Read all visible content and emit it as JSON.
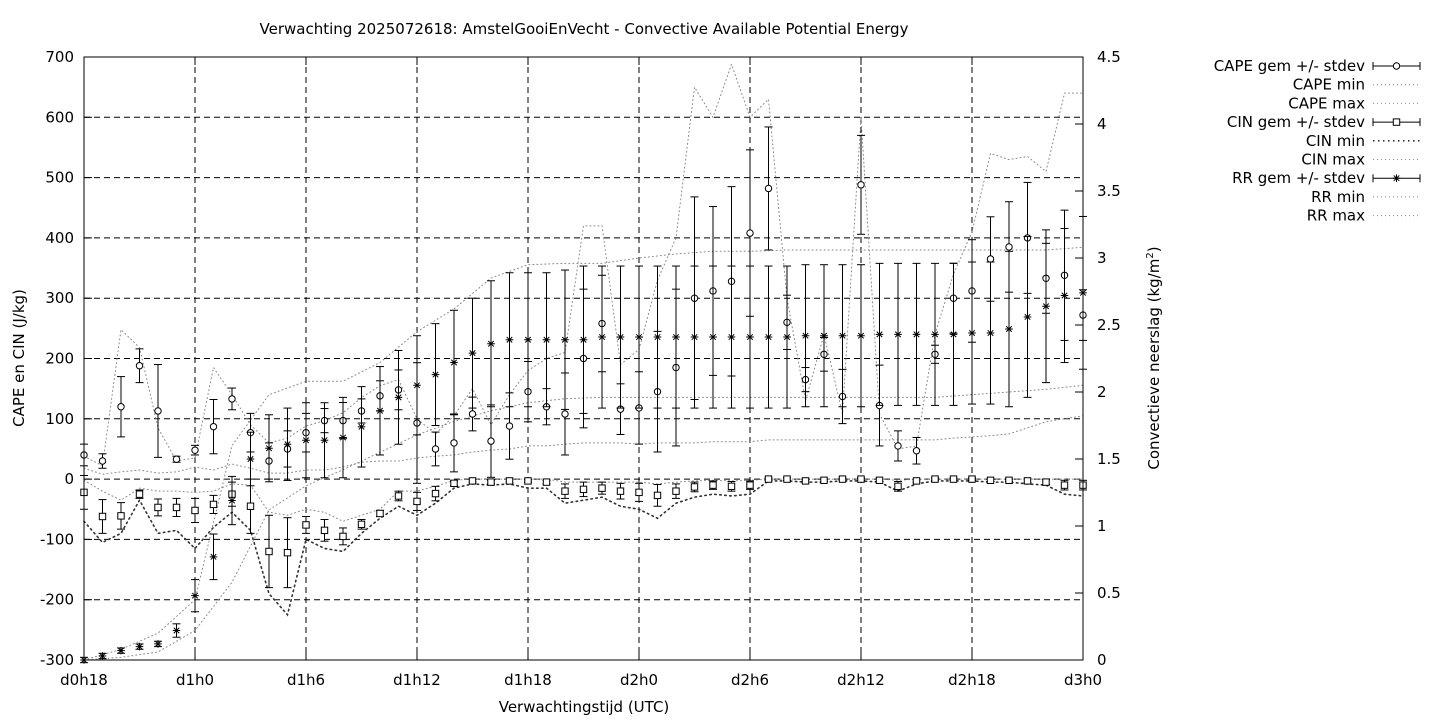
{
  "chart_data": {
    "type": "line",
    "title": "Verwachting 2025072618: AmstelGooiEnVecht - Convective Available Potential Energy",
    "xlabel": "Verwachtingstijd (UTC)",
    "ylabel": "CAPE en CIN (J/kg)",
    "y2label": "Convectieve neerslag (kg/m²)",
    "y2label_base": "Convectieve neerslag (kg/m",
    "y2label_sup": "2",
    "y2label_end": ")",
    "xlim": [
      18,
      72
    ],
    "ylim": [
      -300,
      700
    ],
    "y2lim": [
      0,
      4.5
    ],
    "grid": true,
    "legend_position": "outside-right",
    "x_ticks": [
      {
        "value": 18,
        "label": "d0h18"
      },
      {
        "value": 24,
        "label": "d1h0"
      },
      {
        "value": 30,
        "label": "d1h6"
      },
      {
        "value": 36,
        "label": "d1h12"
      },
      {
        "value": 42,
        "label": "d1h18"
      },
      {
        "value": 48,
        "label": "d2h0"
      },
      {
        "value": 54,
        "label": "d2h6"
      },
      {
        "value": 60,
        "label": "d2h12"
      },
      {
        "value": 66,
        "label": "d2h18"
      },
      {
        "value": 72,
        "label": "d3h0"
      }
    ],
    "y_ticks": [
      {
        "value": 700,
        "label": "700"
      },
      {
        "value": 600,
        "label": "600"
      },
      {
        "value": 500,
        "label": "500"
      },
      {
        "value": 400,
        "label": "400"
      },
      {
        "value": 300,
        "label": "300"
      },
      {
        "value": 200,
        "label": "200"
      },
      {
        "value": 100,
        "label": "100"
      },
      {
        "value": 0,
        "label": "0"
      },
      {
        "value": -100,
        "label": "-100"
      },
      {
        "value": -200,
        "label": "-200"
      },
      {
        "value": -300,
        "label": "-300"
      }
    ],
    "y2_ticks": [
      {
        "value": 4.5,
        "label": "4.5"
      },
      {
        "value": 4,
        "label": "4"
      },
      {
        "value": 3.5,
        "label": "3.5"
      },
      {
        "value": 3,
        "label": "3"
      },
      {
        "value": 2.5,
        "label": "2.5"
      },
      {
        "value": 2,
        "label": "2"
      },
      {
        "value": 1.5,
        "label": "1.5"
      },
      {
        "value": 1,
        "label": "1"
      },
      {
        "value": 0.5,
        "label": "0.5"
      },
      {
        "value": 0,
        "label": "0"
      }
    ],
    "legend": [
      {
        "label": "CAPE gem +/- stdev",
        "style": "errorbar",
        "marker": "circle"
      },
      {
        "label": "CAPE min",
        "style": "dotted"
      },
      {
        "label": "CAPE max",
        "style": "dotted"
      },
      {
        "label": "CIN gem +/- stdev",
        "style": "errorbar",
        "marker": "square"
      },
      {
        "label": "CIN min",
        "style": "dotted-heavy"
      },
      {
        "label": "CIN max",
        "style": "dotted"
      },
      {
        "label": "RR gem +/- stdev",
        "style": "errorbar",
        "marker": "star"
      },
      {
        "label": "RR min",
        "style": "dotted"
      },
      {
        "label": "RR max",
        "style": "dotted"
      }
    ],
    "series": [
      {
        "name": "CAPE gem +/- stdev",
        "axis": "y",
        "marker": "circle",
        "x": [
          18,
          19,
          20,
          21,
          22,
          23,
          24,
          25,
          26,
          27,
          28,
          29,
          30,
          31,
          32,
          33,
          34,
          35,
          36,
          37,
          38,
          39,
          40,
          41,
          42,
          43,
          44,
          45,
          46,
          47,
          48,
          49,
          50,
          51,
          52,
          53,
          54,
          55,
          56,
          57,
          58,
          59,
          60,
          61,
          62,
          63,
          64,
          65,
          66,
          67,
          68,
          69,
          70,
          71,
          72
        ],
        "y": [
          40,
          30,
          120,
          188,
          113,
          33,
          48,
          87,
          133,
          77,
          30,
          50,
          77,
          97,
          97,
          113,
          138,
          148,
          93,
          50,
          60,
          108,
          63,
          88,
          145,
          120,
          108,
          200,
          258,
          116,
          118,
          145,
          185,
          300,
          312,
          328,
          408,
          482,
          260,
          165,
          207,
          137,
          488,
          122,
          55,
          47,
          207,
          300,
          312,
          365,
          385,
          400,
          333,
          338,
          272
        ],
        "err": [
          18,
          12,
          50,
          28,
          77,
          5,
          8,
          45,
          18,
          32,
          30,
          30,
          32,
          20,
          30,
          20,
          25,
          33,
          100,
          28,
          48,
          28,
          60,
          55,
          50,
          30,
          68,
          115,
          80,
          42,
          60,
          100,
          130,
          168,
          140,
          157,
          138,
          102,
          45,
          20,
          28,
          45,
          82,
          67,
          25,
          22,
          15,
          58,
          85,
          70,
          75,
          92,
          58,
          108,
          42
        ]
      },
      {
        "name": "CAPE min",
        "axis": "y",
        "x": [
          18,
          19,
          20,
          21,
          22,
          23,
          24,
          25,
          26,
          27,
          28,
          29,
          30,
          31,
          32,
          33,
          34,
          35,
          36,
          37,
          38,
          39,
          40,
          41,
          42,
          43,
          44,
          45,
          46,
          47,
          48,
          49,
          50,
          51,
          52,
          53,
          54,
          55,
          56,
          57,
          58,
          59,
          60,
          61,
          62,
          63,
          64,
          65,
          66,
          67,
          68,
          69,
          70,
          71,
          72
        ],
        "y": [
          18,
          8,
          12,
          15,
          10,
          12,
          20,
          15,
          25,
          18,
          10,
          10,
          15,
          15,
          20,
          28,
          30,
          30,
          35,
          38,
          40,
          45,
          48,
          50,
          55,
          55,
          58,
          60,
          60,
          60,
          58,
          60,
          60,
          60,
          62,
          62,
          62,
          65,
          65,
          65,
          65,
          65,
          65,
          65,
          65,
          65,
          65,
          68,
          70,
          72,
          75,
          85,
          95,
          100,
          105
        ]
      },
      {
        "name": "CAPE max",
        "axis": "y",
        "x": [
          18,
          19,
          20,
          21,
          22,
          23,
          24,
          25,
          26,
          27,
          28,
          29,
          30,
          31,
          32,
          33,
          34,
          35,
          36,
          37,
          38,
          39,
          40,
          41,
          42,
          43,
          44,
          45,
          46,
          47,
          48,
          49,
          50,
          51,
          52,
          53,
          54,
          55,
          56,
          57,
          58,
          59,
          60,
          61,
          62,
          63,
          64,
          65,
          66,
          67,
          68,
          69,
          70,
          71,
          72
        ],
        "y": [
          38,
          22,
          248,
          218,
          85,
          30,
          35,
          185,
          140,
          90,
          60,
          68,
          88,
          97,
          110,
          135,
          155,
          165,
          100,
          75,
          105,
          150,
          90,
          140,
          180,
          200,
          210,
          420,
          420,
          190,
          215,
          330,
          400,
          650,
          600,
          688,
          600,
          630,
          300,
          130,
          240,
          108,
          600,
          108,
          50,
          55,
          240,
          340,
          410,
          540,
          530,
          535,
          510,
          640,
          640
        ]
      },
      {
        "name": "CIN gem +/- stdev",
        "axis": "y",
        "marker": "square",
        "x": [
          18,
          19,
          20,
          21,
          22,
          23,
          24,
          25,
          26,
          27,
          28,
          29,
          30,
          31,
          32,
          33,
          34,
          35,
          36,
          37,
          38,
          39,
          40,
          41,
          42,
          43,
          44,
          45,
          46,
          47,
          48,
          49,
          50,
          51,
          52,
          53,
          54,
          55,
          56,
          57,
          58,
          59,
          60,
          61,
          62,
          63,
          64,
          65,
          66,
          67,
          68,
          69,
          70,
          71,
          72
        ],
        "y": [
          -22,
          -62,
          -61,
          -25,
          -47,
          -47,
          -52,
          -42,
          -25,
          -45,
          -120,
          -122,
          -76,
          -85,
          -95,
          -75,
          -57,
          -28,
          -37,
          -24,
          -7,
          -3,
          -5,
          -3,
          -3,
          -5,
          -20,
          -17,
          -15,
          -20,
          -22,
          -27,
          -20,
          -13,
          -10,
          -12,
          -10,
          0,
          0,
          -3,
          -2,
          0,
          0,
          -2,
          -12,
          -3,
          0,
          0,
          0,
          -2,
          -2,
          -3,
          -5,
          -10,
          -10
        ],
        "err": [
          28,
          28,
          22,
          7,
          14,
          15,
          20,
          15,
          20,
          45,
          60,
          58,
          14,
          18,
          14,
          8,
          5,
          8,
          15,
          12,
          4,
          2,
          3,
          3,
          2,
          3,
          12,
          12,
          10,
          13,
          15,
          18,
          12,
          8,
          7,
          8,
          7,
          2,
          2,
          2,
          2,
          2,
          2,
          2,
          8,
          2,
          2,
          2,
          2,
          2,
          2,
          3,
          4,
          8,
          8
        ]
      },
      {
        "name": "CIN min",
        "axis": "y",
        "x": [
          18,
          19,
          20,
          21,
          22,
          23,
          24,
          25,
          26,
          27,
          28,
          29,
          30,
          31,
          32,
          33,
          34,
          35,
          36,
          37,
          38,
          39,
          40,
          41,
          42,
          43,
          44,
          45,
          46,
          47,
          48,
          49,
          50,
          51,
          52,
          53,
          54,
          55,
          56,
          57,
          58,
          59,
          60,
          61,
          62,
          63,
          64,
          65,
          66,
          67,
          68,
          69,
          70,
          71,
          72
        ],
        "y": [
          -70,
          -105,
          -90,
          -35,
          -90,
          -85,
          -115,
          -80,
          -55,
          -85,
          -190,
          -225,
          -100,
          -115,
          -120,
          -90,
          -65,
          -45,
          -60,
          -40,
          -15,
          -8,
          -10,
          -8,
          -15,
          -15,
          -40,
          -35,
          -30,
          -45,
          -50,
          -65,
          -40,
          -30,
          -25,
          -28,
          -25,
          -3,
          -3,
          -5,
          -5,
          -3,
          -3,
          -5,
          -20,
          -8,
          -3,
          -3,
          -3,
          -5,
          -5,
          -8,
          -10,
          -25,
          -28
        ]
      },
      {
        "name": "CIN max",
        "axis": "y",
        "x": [
          18,
          19,
          20,
          21,
          22,
          23,
          24,
          25,
          26,
          27,
          28,
          29,
          30,
          31,
          32,
          33,
          34,
          35,
          36,
          37,
          38,
          39,
          40,
          41,
          42,
          43,
          44,
          45,
          46,
          47,
          48,
          49,
          50,
          51,
          52,
          53,
          54,
          55,
          56,
          57,
          58,
          59,
          60,
          61,
          62,
          63,
          64,
          65,
          66,
          67,
          68,
          69,
          70,
          71,
          72
        ],
        "y": [
          -2,
          -20,
          -35,
          -15,
          -20,
          -20,
          -22,
          -20,
          -8,
          -10,
          -55,
          -60,
          -50,
          -55,
          -70,
          -60,
          -50,
          -20,
          -20,
          -12,
          -2,
          0,
          0,
          0,
          0,
          0,
          -5,
          -5,
          -5,
          -5,
          -5,
          -8,
          -5,
          -3,
          -2,
          -3,
          -2,
          0,
          0,
          0,
          0,
          0,
          0,
          0,
          -2,
          0,
          0,
          0,
          0,
          0,
          0,
          0,
          0,
          0,
          0
        ]
      },
      {
        "name": "RR gem +/- stdev",
        "axis": "y2",
        "marker": "star",
        "x": [
          18,
          19,
          20,
          21,
          22,
          23,
          24,
          25,
          26,
          27,
          28,
          29,
          30,
          31,
          32,
          33,
          34,
          35,
          36,
          37,
          38,
          39,
          40,
          41,
          42,
          43,
          44,
          45,
          46,
          47,
          48,
          49,
          50,
          51,
          52,
          53,
          54,
          55,
          56,
          57,
          58,
          59,
          60,
          61,
          62,
          63,
          64,
          65,
          66,
          67,
          68,
          69,
          70,
          71,
          72
        ],
        "y": [
          0.0,
          0.03,
          0.07,
          0.1,
          0.12,
          0.22,
          0.48,
          0.77,
          1.19,
          1.5,
          1.58,
          1.61,
          1.64,
          1.64,
          1.66,
          1.74,
          1.86,
          1.96,
          2.05,
          2.13,
          2.22,
          2.29,
          2.36,
          2.39,
          2.39,
          2.39,
          2.39,
          2.39,
          2.41,
          2.41,
          2.41,
          2.41,
          2.41,
          2.41,
          2.41,
          2.41,
          2.41,
          2.41,
          2.41,
          2.42,
          2.42,
          2.42,
          2.42,
          2.43,
          2.43,
          2.43,
          2.43,
          2.43,
          2.44,
          2.44,
          2.47,
          2.56,
          2.64,
          2.72,
          2.74
        ],
        "err": [
          0.02,
          0.02,
          0.02,
          0.02,
          0.02,
          0.05,
          0.12,
          0.17,
          0.18,
          0.2,
          0.25,
          0.27,
          0.28,
          0.28,
          0.3,
          0.3,
          0.33,
          0.35,
          0.37,
          0.38,
          0.39,
          0.41,
          0.47,
          0.5,
          0.5,
          0.5,
          0.52,
          0.55,
          0.53,
          0.53,
          0.53,
          0.53,
          0.53,
          0.53,
          0.53,
          0.53,
          0.53,
          0.53,
          0.53,
          0.53,
          0.53,
          0.53,
          0.53,
          0.53,
          0.53,
          0.53,
          0.53,
          0.53,
          0.53,
          0.53,
          0.58,
          0.6,
          0.57,
          0.5,
          0.57
        ]
      },
      {
        "name": "RR min",
        "axis": "y2",
        "x": [
          18,
          20,
          22,
          24,
          26,
          28,
          30,
          32,
          34,
          36,
          38,
          40,
          42,
          44,
          46,
          48,
          50,
          52,
          54,
          56,
          58,
          60,
          62,
          64,
          66,
          68,
          70,
          72
        ],
        "y": [
          0.0,
          0.02,
          0.06,
          0.22,
          0.58,
          1.12,
          1.3,
          1.42,
          1.55,
          1.68,
          1.78,
          1.86,
          1.92,
          1.95,
          1.96,
          1.96,
          1.96,
          1.96,
          1.96,
          1.96,
          1.96,
          1.96,
          1.96,
          1.96,
          1.98,
          2.0,
          2.02,
          2.05
        ]
      },
      {
        "name": "RR max",
        "axis": "y2",
        "x": [
          18,
          20,
          22,
          24,
          26,
          28,
          30,
          32,
          34,
          36,
          38,
          40,
          42,
          44,
          46,
          48,
          50,
          52,
          54,
          56,
          58,
          60,
          62,
          64,
          66,
          68,
          70,
          72
        ],
        "y": [
          0.0,
          0.08,
          0.2,
          0.45,
          1.6,
          1.98,
          2.08,
          2.08,
          2.22,
          2.45,
          2.62,
          2.85,
          2.95,
          2.96,
          2.96,
          3.0,
          3.03,
          3.05,
          3.05,
          3.06,
          3.06,
          3.06,
          3.06,
          3.06,
          3.06,
          3.06,
          3.06,
          3.08
        ]
      }
    ]
  }
}
